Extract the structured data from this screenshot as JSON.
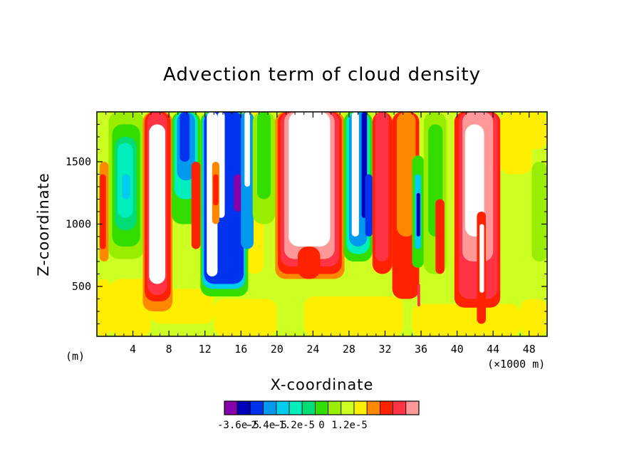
{
  "chart_data": {
    "type": "heatmap",
    "title": "Advection term of cloud density",
    "xlabel": "X-coordinate",
    "ylabel": "Z-coordinate",
    "x_unit_left": "(m)",
    "x_unit_right": "(×1000 m)",
    "xlim": [
      0,
      50
    ],
    "ylim": [
      100,
      1900
    ],
    "xticks": [
      4,
      8,
      12,
      16,
      20,
      24,
      28,
      32,
      36,
      40,
      44,
      48
    ],
    "xtick_labels": [
      "4",
      "8",
      "12",
      "16",
      "20",
      "24",
      "28",
      "32",
      "36",
      "40",
      "44",
      "48"
    ],
    "yticks": [
      500,
      1000,
      1500
    ],
    "ytick_labels": [
      "500",
      "1000",
      "1500"
    ],
    "colorbar": {
      "levels": [
        -4.2e-05,
        -3.6e-05,
        -3e-05,
        -2.4e-05,
        -1.8e-05,
        -1.2e-05,
        -6e-06,
        0,
        6e-06,
        1.2e-05,
        1.8e-05,
        2.4e-05,
        3e-05,
        3.6e-05,
        4.2e-05
      ],
      "colors": [
        "#8800aa",
        "#0000bb",
        "#0033ee",
        "#0099ee",
        "#00ccee",
        "#00eebb",
        "#00dd77",
        "#33dd00",
        "#99ee00",
        "#ccff22",
        "#ffee00",
        "#ff8800",
        "#ff2200",
        "#ff3344",
        "#ff9999"
      ],
      "labels": [
        "-3.6e-5",
        "-2.4e-5",
        "-1.2e-5",
        "0",
        "1.2e-5"
      ],
      "label_values": [
        -3.6e-05,
        -2.4e-05,
        -1.2e-05,
        0,
        1.2e-05
      ]
    },
    "regions": [
      {
        "x": [
          0,
          50
        ],
        "z": [
          100,
          1900
        ],
        "c": 9
      },
      {
        "x": [
          0,
          1.5
        ],
        "z": [
          100,
          560
        ],
        "c": 10
      },
      {
        "x": [
          1.5,
          6
        ],
        "z": [
          100,
          560
        ],
        "c": 10
      },
      {
        "x": [
          6,
          13
        ],
        "z": [
          200,
          480
        ],
        "c": 10
      },
      {
        "x": [
          13,
          20
        ],
        "z": [
          100,
          400
        ],
        "c": 10
      },
      {
        "x": [
          23,
          34
        ],
        "z": [
          100,
          420
        ],
        "c": 10
      },
      {
        "x": [
          35,
          47
        ],
        "z": [
          100,
          360
        ],
        "c": 10
      },
      {
        "x": [
          47,
          50
        ],
        "z": [
          100,
          400
        ],
        "c": 10
      },
      {
        "x": [
          11.5,
          13.5
        ],
        "z": [
          420,
          1900
        ],
        "c": 10
      },
      {
        "x": [
          16.5,
          18.5
        ],
        "z": [
          600,
          1900
        ],
        "c": 10
      },
      {
        "x": [
          30.5,
          33
        ],
        "z": [
          600,
          1900
        ],
        "c": 10
      },
      {
        "x": [
          45,
          50
        ],
        "z": [
          1600,
          1900
        ],
        "c": 10
      },
      {
        "x": [
          0.3,
          1.3
        ],
        "z": [
          700,
          1500
        ],
        "c": 11
      },
      {
        "x": [
          0.3,
          1.0
        ],
        "z": [
          800,
          1400
        ],
        "c": 12
      },
      {
        "x": [
          49.0,
          50.0
        ],
        "z": [
          800,
          1400
        ],
        "c": 7
      },
      {
        "x": [
          1.3,
          5.2
        ],
        "z": [
          720,
          1900
        ],
        "c": 8
      },
      {
        "x": [
          1.7,
          4.8
        ],
        "z": [
          820,
          1800
        ],
        "c": 7
      },
      {
        "x": [
          2.0,
          4.4
        ],
        "z": [
          950,
          1700
        ],
        "c": 6
      },
      {
        "x": [
          2.3,
          4.0
        ],
        "z": [
          1050,
          1650
        ],
        "c": 5
      },
      {
        "x": [
          2.8,
          3.7
        ],
        "z": [
          1200,
          1400
        ],
        "c": 4
      },
      {
        "x": [
          5.1,
          8.4
        ],
        "z": [
          300,
          1900
        ],
        "c": 11
      },
      {
        "x": [
          5.3,
          8.2
        ],
        "z": [
          380,
          1900
        ],
        "c": 12
      },
      {
        "x": [
          5.6,
          7.8
        ],
        "z": [
          430,
          1900
        ],
        "c": 13
      },
      {
        "x": [
          5.8,
          7.6
        ],
        "z": [
          520,
          1800
        ],
        "c": -1
      },
      {
        "x": [
          8.3,
          11.5
        ],
        "z": [
          1000,
          1900
        ],
        "c": 7
      },
      {
        "x": [
          8.6,
          11.2
        ],
        "z": [
          1200,
          1900
        ],
        "c": 5
      },
      {
        "x": [
          8.9,
          10.9
        ],
        "z": [
          1350,
          1900
        ],
        "c": 3
      },
      {
        "x": [
          9.2,
          10.3
        ],
        "z": [
          1500,
          1900
        ],
        "c": 2
      },
      {
        "x": [
          10.5,
          11.5
        ],
        "z": [
          800,
          1500
        ],
        "c": 12
      },
      {
        "x": [
          11.5,
          16.8
        ],
        "z": [
          420,
          1900
        ],
        "c": 7
      },
      {
        "x": [
          11.7,
          16.5
        ],
        "z": [
          480,
          1900
        ],
        "c": 4
      },
      {
        "x": [
          11.9,
          16.3
        ],
        "z": [
          520,
          1900
        ],
        "c": 2
      },
      {
        "x": [
          12.2,
          13.4
        ],
        "z": [
          580,
          1900
        ],
        "c": -1
      },
      {
        "x": [
          13.4,
          14.2
        ],
        "z": [
          1050,
          1900
        ],
        "c": -1
      },
      {
        "x": [
          12.8,
          13.6
        ],
        "z": [
          1000,
          1500
        ],
        "c": 11
      },
      {
        "x": [
          12.9,
          13.5
        ],
        "z": [
          1150,
          1400
        ],
        "c": 12
      },
      {
        "x": [
          14.2,
          15.2
        ],
        "z": [
          700,
          1100
        ],
        "c": 2
      },
      {
        "x": [
          15.2,
          16.2
        ],
        "z": [
          1100,
          1400
        ],
        "c": 0
      },
      {
        "x": [
          16.0,
          17.4
        ],
        "z": [
          800,
          1900
        ],
        "c": 3
      },
      {
        "x": [
          16.4,
          17.0
        ],
        "z": [
          1300,
          1900
        ],
        "c": -1
      },
      {
        "x": [
          17.3,
          19.8
        ],
        "z": [
          1000,
          1900
        ],
        "c": 8
      },
      {
        "x": [
          17.8,
          19.3
        ],
        "z": [
          1200,
          1900
        ],
        "c": 7
      },
      {
        "x": [
          19.8,
          27.5
        ],
        "z": [
          560,
          1900
        ],
        "c": 11
      },
      {
        "x": [
          20.1,
          27.2
        ],
        "z": [
          600,
          1900
        ],
        "c": 12
      },
      {
        "x": [
          20.4,
          26.9
        ],
        "z": [
          660,
          1900
        ],
        "c": 13
      },
      {
        "x": [
          20.8,
          26.4
        ],
        "z": [
          720,
          1900
        ],
        "c": 14
      },
      {
        "x": [
          21.3,
          25.9
        ],
        "z": [
          820,
          1900
        ],
        "c": -1
      },
      {
        "x": [
          22.3,
          24.8
        ],
        "z": [
          560,
          820
        ],
        "c": 12
      },
      {
        "x": [
          27.4,
          30.6
        ],
        "z": [
          700,
          1900
        ],
        "c": 7
      },
      {
        "x": [
          27.7,
          30.3
        ],
        "z": [
          760,
          1900
        ],
        "c": 5
      },
      {
        "x": [
          28.0,
          30.0
        ],
        "z": [
          820,
          1900
        ],
        "c": 3
      },
      {
        "x": [
          28.3,
          29.1
        ],
        "z": [
          900,
          1900
        ],
        "c": -1
      },
      {
        "x": [
          29.4,
          30.0
        ],
        "z": [
          1050,
          1900
        ],
        "c": 1
      },
      {
        "x": [
          29.8,
          30.6
        ],
        "z": [
          900,
          1400
        ],
        "c": 2
      },
      {
        "x": [
          30.6,
          32.8
        ],
        "z": [
          600,
          1900
        ],
        "c": 12
      },
      {
        "x": [
          30.9,
          32.4
        ],
        "z": [
          700,
          1900
        ],
        "c": 13
      },
      {
        "x": [
          32.8,
          35.8
        ],
        "z": [
          400,
          1900
        ],
        "c": 12
      },
      {
        "x": [
          33.3,
          35.4
        ],
        "z": [
          900,
          1900
        ],
        "c": 11
      },
      {
        "x": [
          35.0,
          36.3
        ],
        "z": [
          650,
          1550
        ],
        "c": 7
      },
      {
        "x": [
          35.3,
          36.0
        ],
        "z": [
          800,
          1400
        ],
        "c": 4
      },
      {
        "x": [
          35.5,
          35.9
        ],
        "z": [
          900,
          1250
        ],
        "c": 1
      },
      {
        "x": [
          35.6,
          35.9
        ],
        "z": [
          340,
          520
        ],
        "c": 13
      },
      {
        "x": [
          36.3,
          38.8
        ],
        "z": [
          600,
          1900
        ],
        "c": 8
      },
      {
        "x": [
          36.8,
          38.4
        ],
        "z": [
          900,
          1800
        ],
        "c": 7
      },
      {
        "x": [
          37.6,
          38.6
        ],
        "z": [
          600,
          1200
        ],
        "c": 12
      },
      {
        "x": [
          39.7,
          44.8
        ],
        "z": [
          330,
          1900
        ],
        "c": 12
      },
      {
        "x": [
          40.2,
          44.5
        ],
        "z": [
          400,
          1900
        ],
        "c": 13
      },
      {
        "x": [
          40.6,
          44.0
        ],
        "z": [
          700,
          1900
        ],
        "c": 14
      },
      {
        "x": [
          40.9,
          43.0
        ],
        "z": [
          900,
          1800
        ],
        "c": -1
      },
      {
        "x": [
          42.2,
          43.2
        ],
        "z": [
          200,
          1100
        ],
        "c": 12
      },
      {
        "x": [
          42.5,
          43.0
        ],
        "z": [
          450,
          1000
        ],
        "c": -1
      },
      {
        "x": [
          44.8,
          48.3
        ],
        "z": [
          1400,
          1900
        ],
        "c": 10
      },
      {
        "x": [
          48.3,
          50.0
        ],
        "z": [
          700,
          1500
        ],
        "c": 8
      }
    ]
  }
}
